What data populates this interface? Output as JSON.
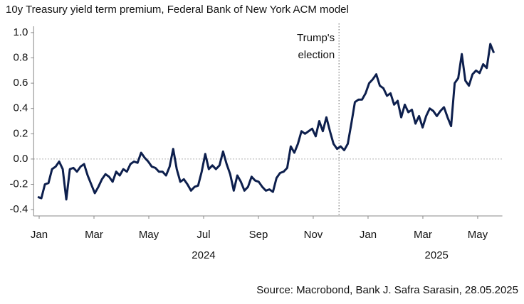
{
  "chart_data": {
    "type": "line",
    "title": "10y Treasury yield term premium, Federal Bank of New York ACM model",
    "source": "Source: Macrobond, Bank J. Safra Sarasin, 28.05.2025",
    "annotation": {
      "text": [
        "Trump's",
        "election"
      ],
      "x": 10.94
    },
    "xlim": [
      -0.2,
      16.9
    ],
    "xticks": [
      {
        "value": 0,
        "label": "Jan"
      },
      {
        "value": 2,
        "label": "Mar"
      },
      {
        "value": 4,
        "label": "May"
      },
      {
        "value": 6,
        "label": "Jul"
      },
      {
        "value": 8,
        "label": "Sep"
      },
      {
        "value": 10,
        "label": "Nov"
      },
      {
        "value": 12,
        "label": "Jan"
      },
      {
        "value": 14,
        "label": "Mar"
      },
      {
        "value": 16,
        "label": "May"
      }
    ],
    "year_labels": [
      {
        "value": 6,
        "label": "2024"
      },
      {
        "value": 14.5,
        "label": "2025"
      }
    ],
    "ylim": [
      -0.45,
      1.05
    ],
    "yticks": [
      {
        "value": -0.4,
        "label": "-0.4"
      },
      {
        "value": -0.2,
        "label": "-0.2"
      },
      {
        "value": 0,
        "label": "0.0"
      },
      {
        "value": 0.2,
        "label": "0.2"
      },
      {
        "value": 0.4,
        "label": "0.4"
      },
      {
        "value": 0.6,
        "label": "0.6"
      },
      {
        "value": 0.8,
        "label": "0.8"
      },
      {
        "value": 1,
        "label": "1.0"
      }
    ],
    "zero_line": true,
    "x": [
      -0.05,
      0.08,
      0.21,
      0.34,
      0.47,
      0.6,
      0.73,
      0.86,
      0.99,
      1.12,
      1.25,
      1.38,
      1.51,
      1.64,
      1.77,
      1.9,
      2.03,
      2.16,
      2.29,
      2.42,
      2.55,
      2.68,
      2.81,
      2.94,
      3.07,
      3.2,
      3.33,
      3.46,
      3.59,
      3.72,
      3.85,
      3.98,
      4.11,
      4.24,
      4.37,
      4.5,
      4.63,
      4.76,
      4.89,
      5.02,
      5.15,
      5.28,
      5.41,
      5.54,
      5.67,
      5.8,
      5.93,
      6.06,
      6.19,
      6.32,
      6.45,
      6.58,
      6.71,
      6.84,
      6.97,
      7.1,
      7.23,
      7.36,
      7.49,
      7.62,
      7.75,
      7.88,
      8.01,
      8.14,
      8.27,
      8.4,
      8.53,
      8.66,
      8.79,
      8.92,
      9.05,
      9.18,
      9.31,
      9.44,
      9.57,
      9.7,
      9.83,
      9.96,
      10.09,
      10.22,
      10.35,
      10.48,
      10.61,
      10.74,
      10.87,
      11,
      11.13,
      11.26,
      11.39,
      11.52,
      11.65,
      11.78,
      11.91,
      12.04,
      12.17,
      12.3,
      12.43,
      12.56,
      12.69,
      12.82,
      12.95,
      13.08,
      13.21,
      13.34,
      13.47,
      13.6,
      13.73,
      13.86,
      13.99,
      14.12,
      14.25,
      14.38,
      14.51,
      14.64,
      14.77,
      14.9,
      15.03,
      15.16,
      15.29,
      15.42,
      15.55,
      15.68,
      15.81,
      15.94,
      16.07,
      16.2,
      16.33,
      16.46,
      16.59
    ],
    "series": [
      {
        "name": "Term premium",
        "color": "#0d1f4d",
        "values": [
          -0.3,
          -0.31,
          -0.2,
          -0.19,
          -0.08,
          -0.06,
          -0.02,
          -0.08,
          -0.32,
          -0.08,
          -0.07,
          -0.1,
          -0.06,
          -0.04,
          -0.13,
          -0.2,
          -0.27,
          -0.22,
          -0.16,
          -0.12,
          -0.14,
          -0.18,
          -0.1,
          -0.13,
          -0.08,
          -0.1,
          -0.04,
          -0.02,
          -0.03,
          0.05,
          0.01,
          -0.02,
          -0.06,
          -0.07,
          -0.1,
          -0.1,
          -0.13,
          -0.06,
          0.08,
          -0.08,
          -0.18,
          -0.16,
          -0.2,
          -0.25,
          -0.22,
          -0.21,
          -0.1,
          0.04,
          -0.08,
          -0.05,
          -0.08,
          -0.05,
          0.06,
          -0.04,
          -0.12,
          -0.25,
          -0.13,
          -0.18,
          -0.25,
          -0.22,
          -0.14,
          -0.17,
          -0.18,
          -0.22,
          -0.25,
          -0.24,
          -0.26,
          -0.15,
          -0.11,
          -0.1,
          -0.07,
          0.1,
          0.05,
          0.12,
          0.22,
          0.2,
          0.22,
          0.24,
          0.18,
          0.3,
          0.22,
          0.33,
          0.22,
          0.12,
          0.08,
          0.1,
          0.07,
          0.12,
          0.28,
          0.45,
          0.47,
          0.47,
          0.52,
          0.6,
          0.63,
          0.67,
          0.58,
          0.56,
          0.5,
          0.52,
          0.43,
          0.46,
          0.33,
          0.43,
          0.37,
          0.39,
          0.28,
          0.34,
          0.25,
          0.34,
          0.4,
          0.38,
          0.34,
          0.38,
          0.41,
          0.33,
          0.26,
          0.6,
          0.64,
          0.83,
          0.62,
          0.58,
          0.67,
          0.7,
          0.68,
          0.75,
          0.72,
          0.91,
          0.84
        ]
      }
    ]
  }
}
